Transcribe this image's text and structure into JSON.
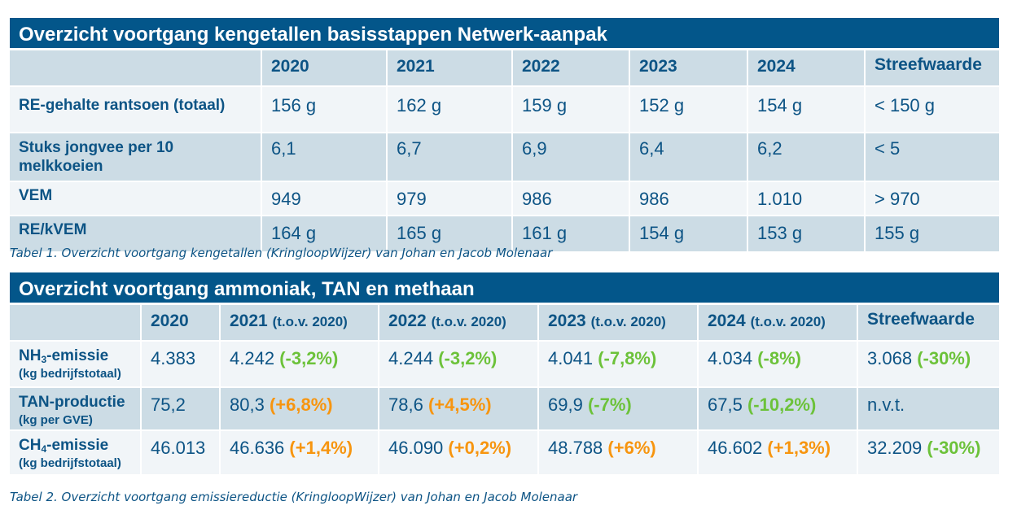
{
  "table1": {
    "title": "Overzicht voortgang kengetallen basisstappen Netwerk-aanpak",
    "headers": [
      "",
      "2020",
      "2021",
      "2022",
      "2023",
      "2024",
      "Streefwaarde"
    ],
    "rows": [
      {
        "label": "RE-gehalte rantsoen (totaal)",
        "values": [
          "156 g",
          "162 g",
          "159 g",
          "152 g",
          "154 g",
          "< 150 g"
        ]
      },
      {
        "label": "Stuks jongvee per 10 melkkoeien",
        "values": [
          "6,1",
          "6,7",
          "6,9",
          "6,4",
          "6,2",
          "< 5"
        ]
      },
      {
        "label": "VEM",
        "values": [
          "949",
          "979",
          "986",
          "986",
          "1.010",
          "> 970"
        ]
      },
      {
        "label": "RE/kVEM",
        "values": [
          "164 g",
          "165 g",
          "161 g",
          "154 g",
          "153 g",
          "155 g"
        ]
      }
    ],
    "caption": "Tabel 1. Overzicht voortgang kengetallen (KringloopWijzer) van Johan en Jacob Molenaar"
  },
  "table2": {
    "title": "Overzicht voortgang ammoniak, TAN en methaan",
    "headers": [
      {
        "year": "",
        "note": ""
      },
      {
        "year": "2020",
        "note": ""
      },
      {
        "year": "2021",
        "note": "(t.o.v. 2020)"
      },
      {
        "year": "2022",
        "note": "(t.o.v. 2020)"
      },
      {
        "year": "2023",
        "note": "(t.o.v. 2020)"
      },
      {
        "year": "2024",
        "note": "(t.o.v. 2020)"
      },
      {
        "year": "Streefwaarde",
        "note": ""
      }
    ],
    "rows": [
      {
        "label_pre": "NH",
        "label_sub": "3",
        "label_post": "-emissie",
        "unit": "(kg bedrijfstotaal)",
        "cells": [
          {
            "value": "4.383",
            "change": "",
            "trend": ""
          },
          {
            "value": "4.242",
            "change": "(-3,2%)",
            "trend": "good"
          },
          {
            "value": "4.244",
            "change": "(-3,2%)",
            "trend": "good"
          },
          {
            "value": "4.041",
            "change": "(-7,8%)",
            "trend": "good"
          },
          {
            "value": "4.034",
            "change": "(-8%)",
            "trend": "good"
          },
          {
            "value": "3.068",
            "change": "(-30%)",
            "trend": "good"
          }
        ]
      },
      {
        "label_pre": "TAN-productie",
        "label_sub": "",
        "label_post": "",
        "unit": "(kg per GVE)",
        "cells": [
          {
            "value": "75,2",
            "change": "",
            "trend": ""
          },
          {
            "value": "80,3",
            "change": "(+6,8%)",
            "trend": "bad"
          },
          {
            "value": "78,6",
            "change": "(+4,5%)",
            "trend": "bad"
          },
          {
            "value": "69,9",
            "change": "(-7%)",
            "trend": "good"
          },
          {
            "value": "67,5",
            "change": "(-10,2%)",
            "trend": "good"
          },
          {
            "value": "n.v.t.",
            "change": "",
            "trend": ""
          }
        ]
      },
      {
        "label_pre": "CH",
        "label_sub": "4",
        "label_post": "-emissie",
        "unit": "(kg bedrijfstotaal)",
        "cells": [
          {
            "value": "46.013",
            "change": "",
            "trend": ""
          },
          {
            "value": "46.636",
            "change": "(+1,4%)",
            "trend": "bad"
          },
          {
            "value": "46.090",
            "change": "(+0,2%)",
            "trend": "bad"
          },
          {
            "value": "48.788",
            "change": "(+6%)",
            "trend": "bad"
          },
          {
            "value": "46.602",
            "change": "(+1,3%)",
            "trend": "bad"
          },
          {
            "value": "32.209",
            "change": "(-30%)",
            "trend": "good"
          }
        ]
      }
    ],
    "caption": "Tabel 2. Overzicht voortgang emissiereductie (KringloopWijzer) van Johan en Jacob Molenaar"
  },
  "colors": {
    "title_bg": "#03568a",
    "text": "#0d5485",
    "row_dark": "#ccdce5",
    "row_light": "#f1f5f8",
    "decrease_good": "#6cc23a",
    "increase_bad": "#f7950f"
  }
}
